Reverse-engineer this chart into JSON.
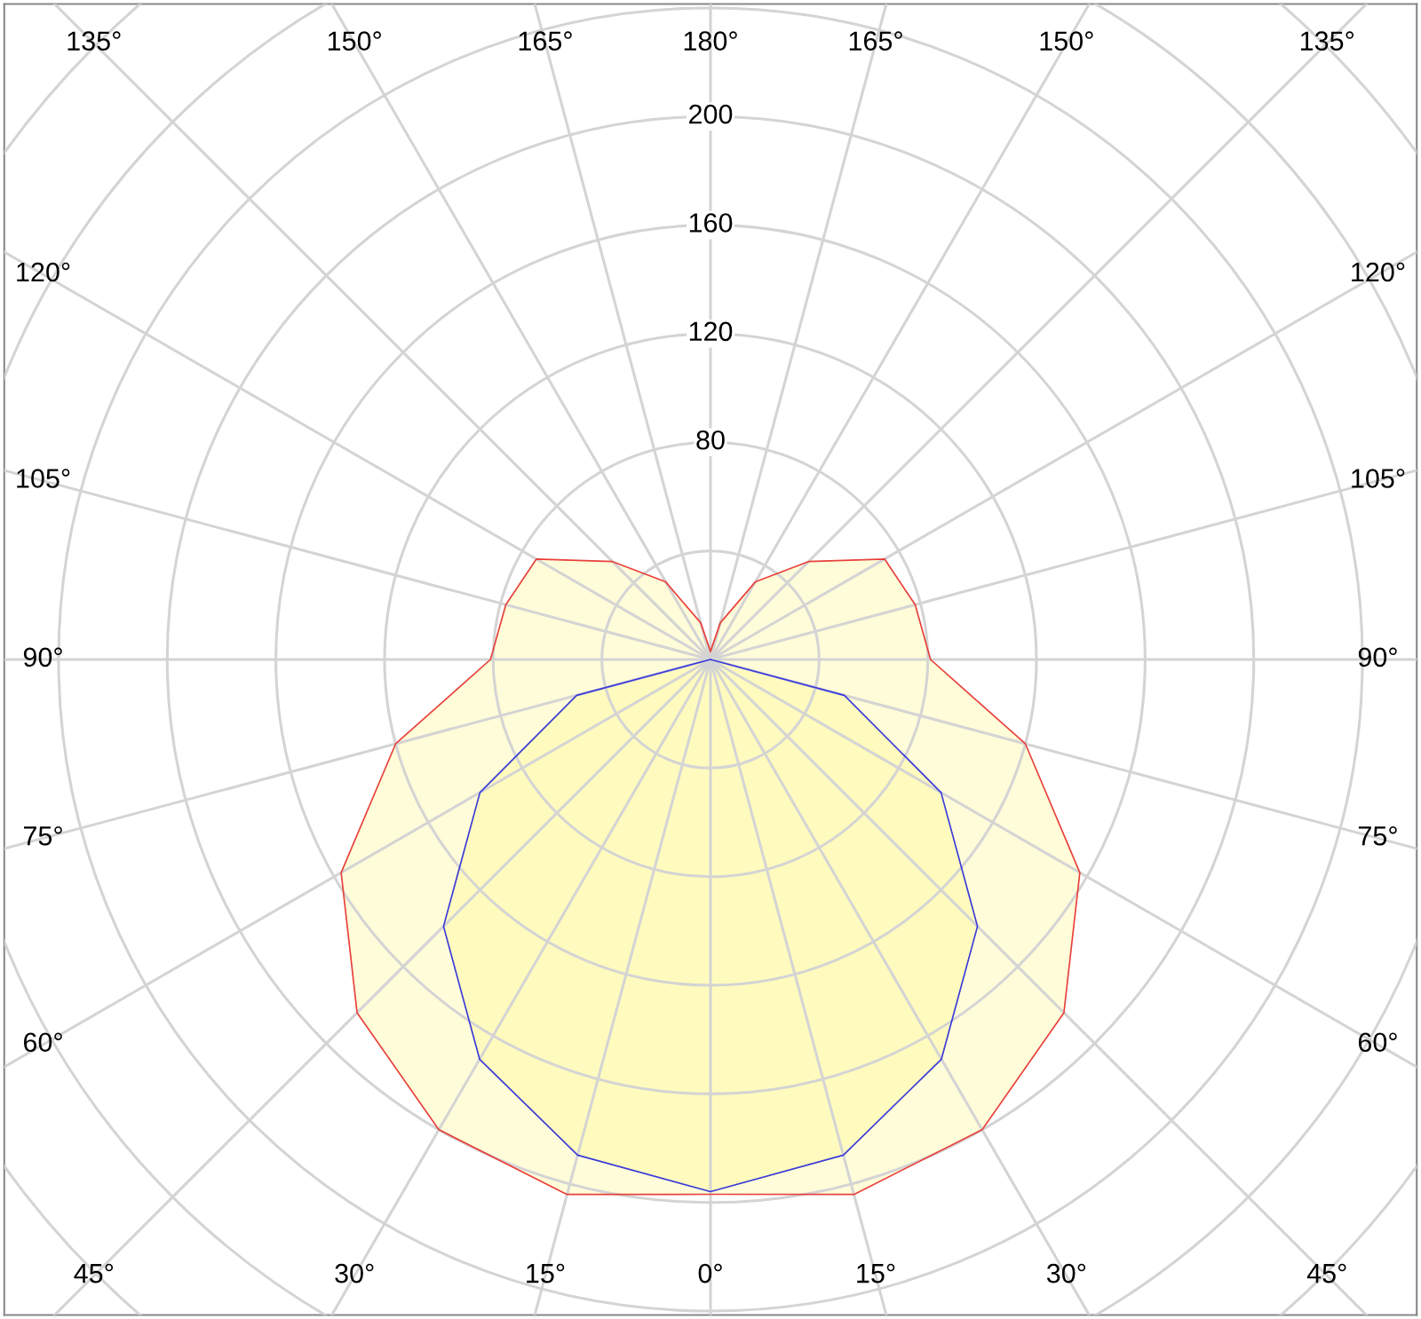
{
  "chart_data": {
    "type": "radar",
    "categories": [
      "180°",
      "165°",
      "150°",
      "135°",
      "120°",
      "105°",
      "90°",
      "75°",
      "60°",
      "45°",
      "30°",
      "15°",
      "0°",
      "15°",
      "30°",
      "45°",
      "60°",
      "75°",
      "90°",
      "105°",
      "120°",
      "135°",
      "150°",
      "165°"
    ],
    "series": [
      {
        "color": "#e8403a",
        "values": [
          3,
          14,
          33,
          51,
          74,
          78,
          81,
          120,
          157,
          184,
          200,
          204,
          197,
          204,
          200,
          184,
          157,
          120,
          81,
          78,
          74,
          51,
          33,
          14
        ]
      },
      {
        "color": "#3a3ad8",
        "values": [
          0,
          0,
          0,
          0,
          0,
          0,
          0,
          51,
          98,
          139,
          170,
          189,
          196,
          189,
          170,
          139,
          98,
          51,
          0,
          0,
          0,
          0,
          0,
          0
        ]
      }
    ],
    "ylim": [
      0,
      360
    ],
    "yticks": [
      80,
      120,
      160,
      200
    ],
    "grid": true,
    "marker": "none",
    "line_style": "solid"
  }
}
